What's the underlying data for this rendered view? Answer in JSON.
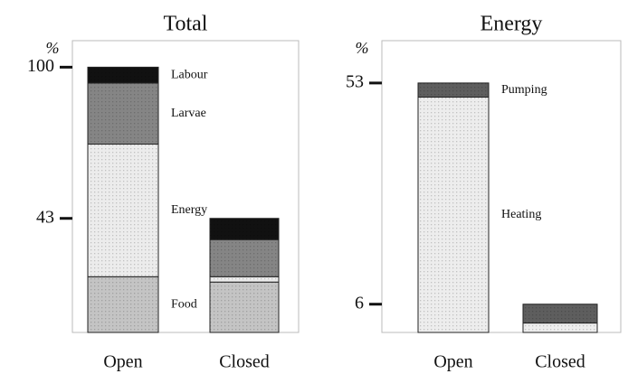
{
  "chart_data": [
    {
      "type": "bar",
      "stacked": true,
      "title": "Total",
      "ylabel": "%",
      "categories": [
        "Open",
        "Closed"
      ],
      "series": [
        {
          "name": "Food",
          "color": "#c4c4c4",
          "values": [
            21,
            19
          ]
        },
        {
          "name": "Energy",
          "color": "#ececec",
          "values": [
            50,
            2
          ]
        },
        {
          "name": "Larvae",
          "color": "#858585",
          "values": [
            23,
            14
          ]
        },
        {
          "name": "Labour",
          "color": "#111111",
          "values": [
            6,
            8
          ]
        }
      ],
      "ylim": [
        0,
        110
      ],
      "yticks": [
        43,
        100
      ]
    },
    {
      "type": "bar",
      "stacked": true,
      "title": "Energy",
      "ylabel": "%",
      "categories": [
        "Open",
        "Closed"
      ],
      "series": [
        {
          "name": "Heating",
          "color": "#ededed",
          "values": [
            50,
            2
          ]
        },
        {
          "name": "Pumping",
          "color": "#5e5e5e",
          "values": [
            3,
            4
          ]
        }
      ],
      "ylim": [
        0,
        62
      ],
      "yticks": [
        6,
        53
      ]
    }
  ]
}
